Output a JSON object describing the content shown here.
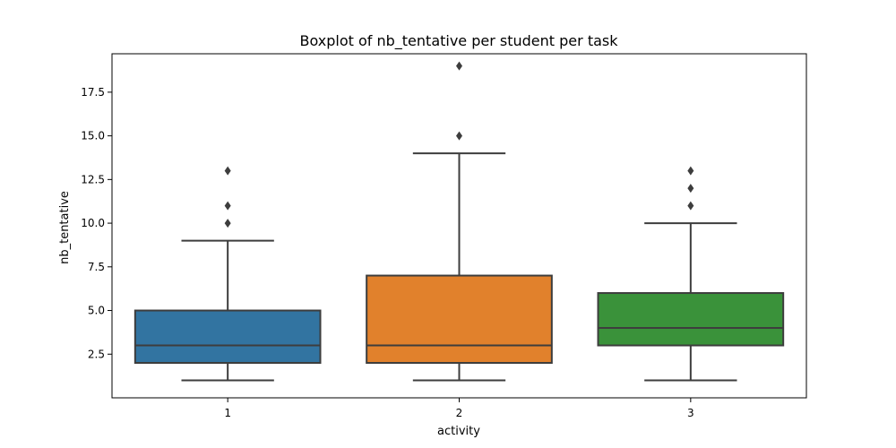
{
  "chart_data": {
    "type": "boxplot",
    "title": "Boxplot of nb_tentative per student per task",
    "xlabel": "activity",
    "ylabel": "nb_tentative",
    "ylim": [
      0.0,
      19.7
    ],
    "yticks": [
      2.5,
      5.0,
      7.5,
      10.0,
      12.5,
      15.0,
      17.5
    ],
    "ytick_labels": [
      "2.5",
      "5.0",
      "7.5",
      "10.0",
      "12.5",
      "15.0",
      "17.5"
    ],
    "categories": [
      "1",
      "2",
      "3"
    ],
    "grid": false,
    "legend": "none",
    "boxes": [
      {
        "category": "1",
        "whisker_low": 1,
        "q1": 2,
        "median": 3,
        "q3": 5,
        "whisker_high": 9,
        "outliers": [
          10,
          11,
          13
        ],
        "color": "#3274a1"
      },
      {
        "category": "2",
        "whisker_low": 1,
        "q1": 2,
        "median": 3,
        "q3": 7,
        "whisker_high": 14,
        "outliers": [
          15,
          19
        ],
        "color": "#e1812c"
      },
      {
        "category": "3",
        "whisker_low": 1,
        "q1": 3,
        "median": 4,
        "q3": 6,
        "whisker_high": 10,
        "outliers": [
          11,
          12,
          13
        ],
        "color": "#3a923a"
      }
    ]
  }
}
